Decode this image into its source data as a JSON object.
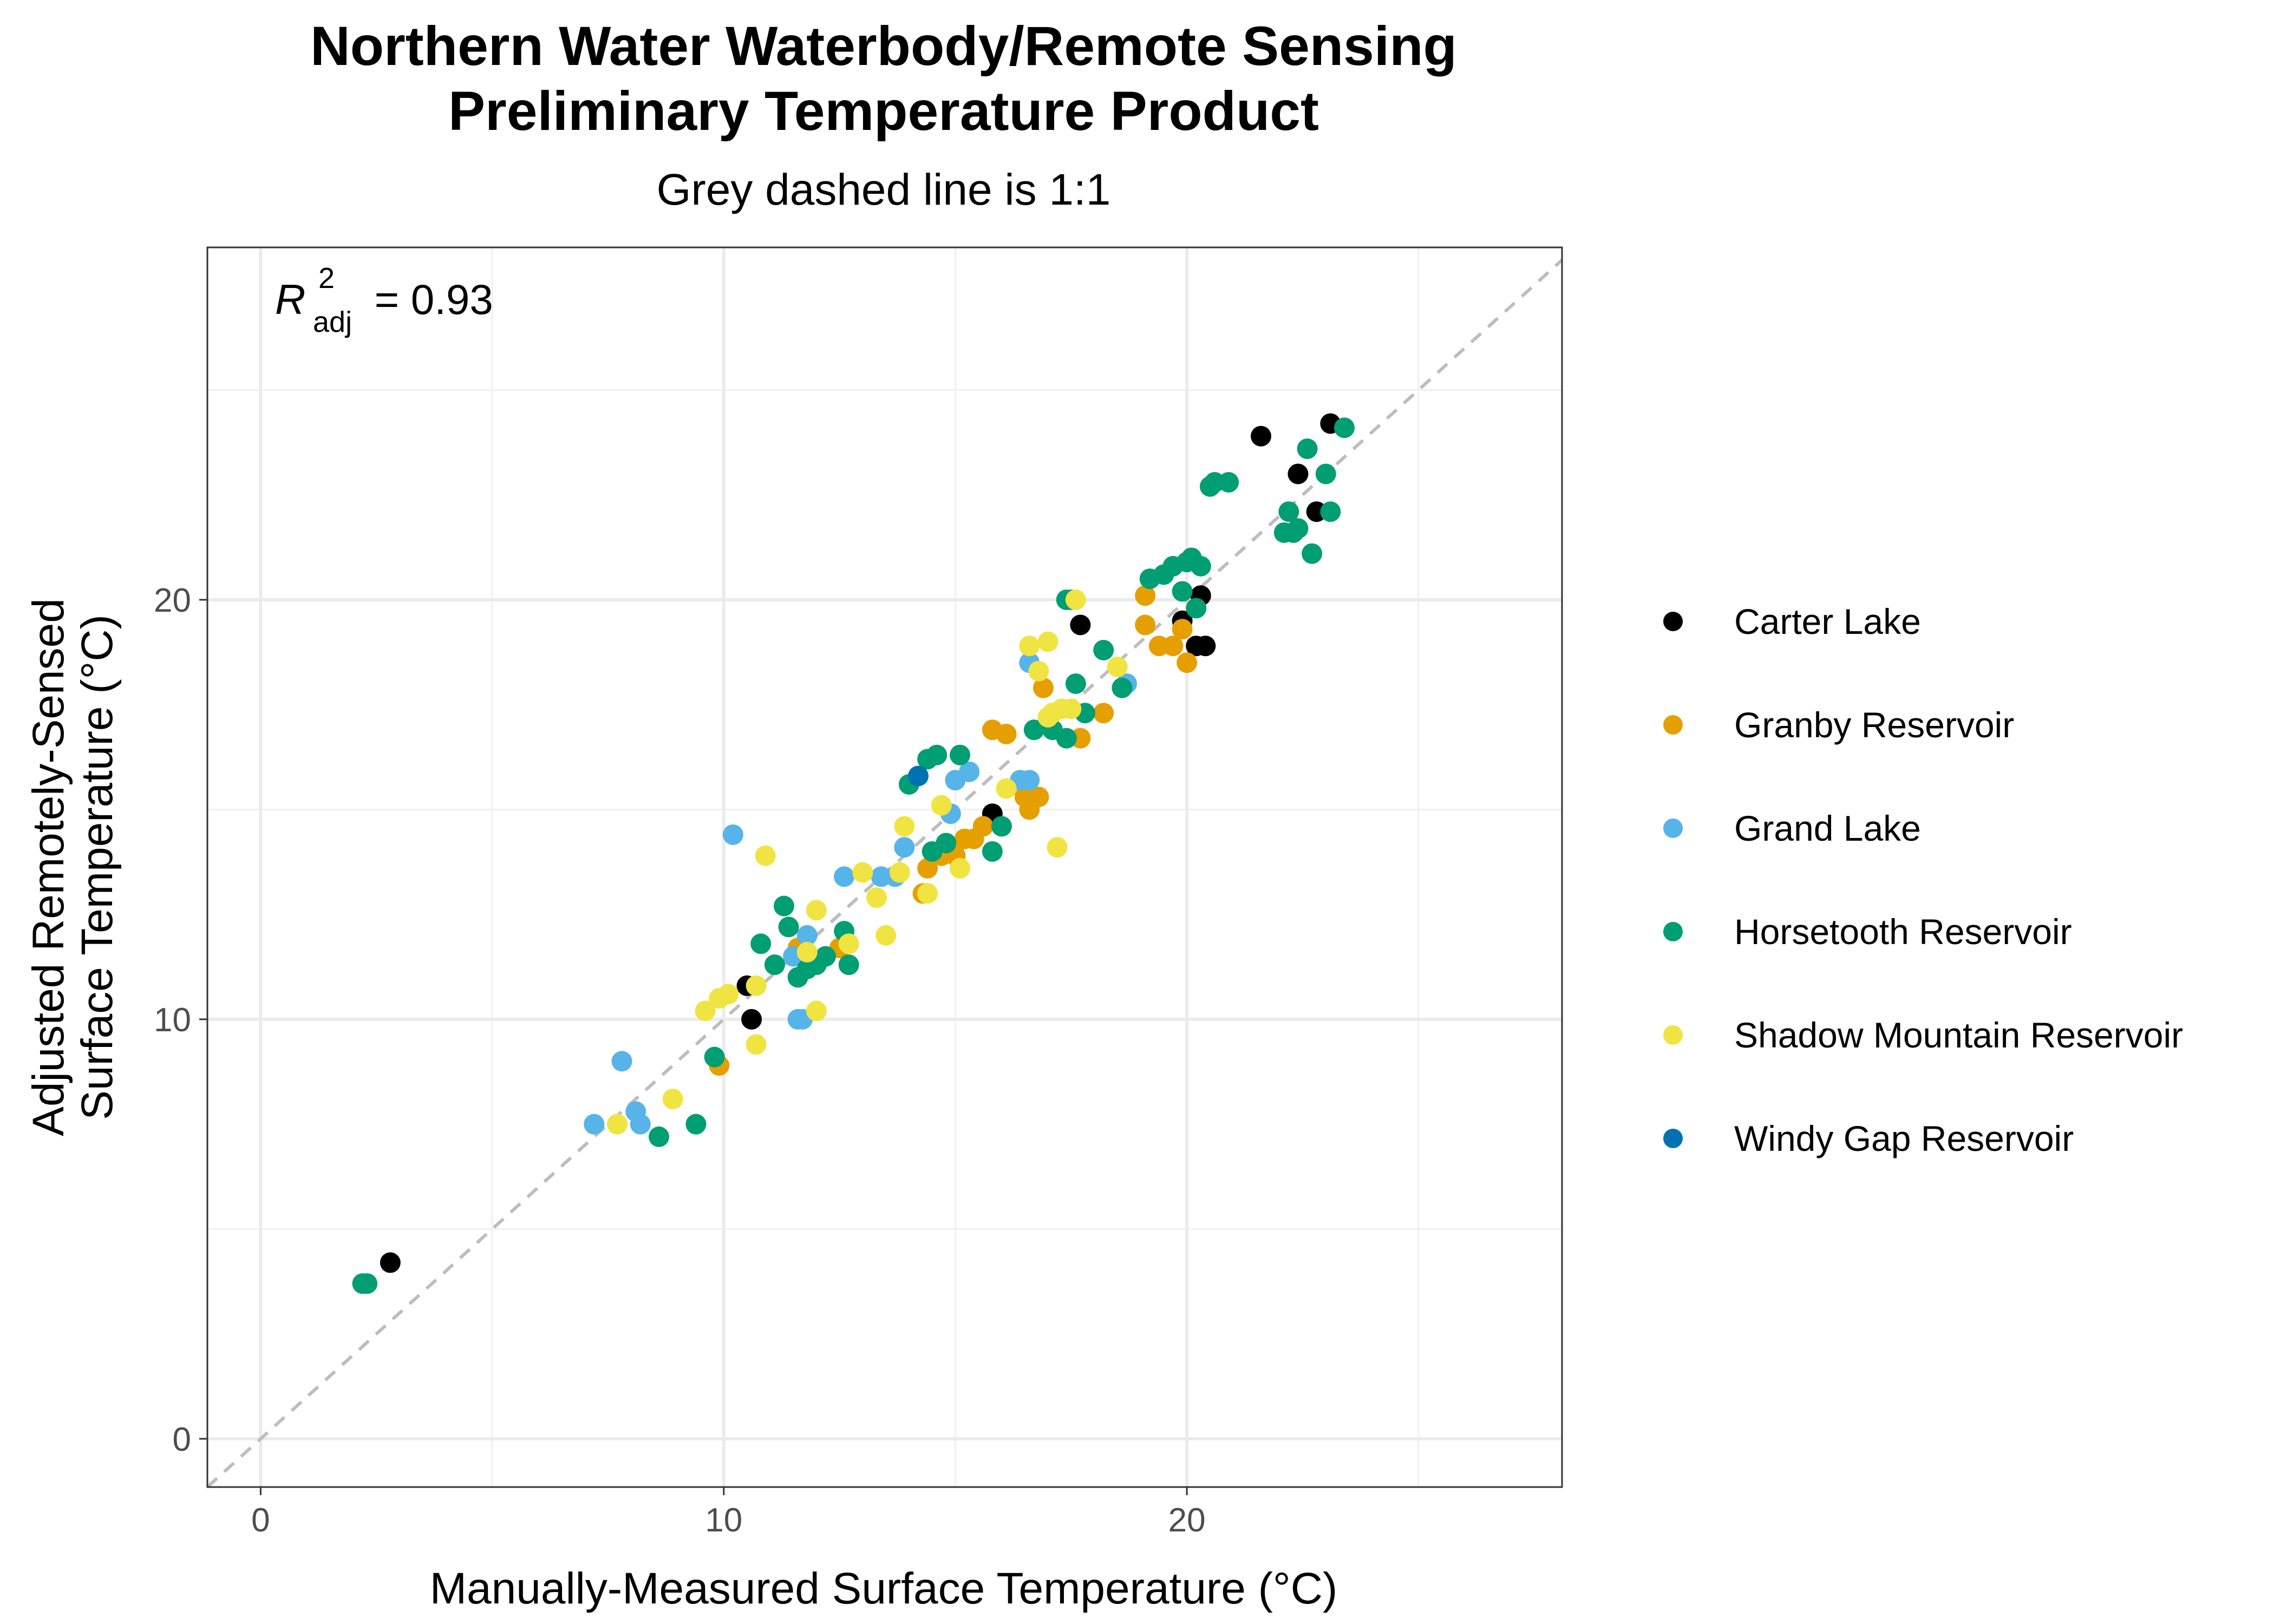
{
  "chart_data": {
    "type": "scatter",
    "title_line1": "Northern Water Waterbody/Remote Sensing",
    "title_line2": "Preliminary Temperature Product",
    "subtitle": "Grey dashed line is 1:1",
    "xlabel": "Manually-Measured Surface Temperature (°C)",
    "ylabel_line1": "Adjusted Remotely-Sensed",
    "ylabel_line2": "Surface Temperature (°C)",
    "xlim": [
      -1.15,
      28.1
    ],
    "ylim": [
      -1.15,
      28.4
    ],
    "x_ticks": [
      0,
      10,
      20
    ],
    "y_ticks": [
      0,
      10,
      20
    ],
    "x_minor": [
      5,
      15,
      25
    ],
    "y_minor": [
      5,
      15,
      25
    ],
    "grid": true,
    "reference_line": {
      "slope": 1,
      "intercept": 0,
      "color": "#bdbdbd",
      "style": "dashed"
    },
    "annotation": {
      "symbol": "R",
      "superscript": "2",
      "subscript": "adj",
      "value": " = 0.93"
    },
    "legend_position": "right",
    "series": [
      {
        "name": "Carter Lake",
        "color": "#000000",
        "points": [
          [
            2.8,
            4.2
          ],
          [
            10.5,
            10.8
          ],
          [
            10.6,
            10.0
          ],
          [
            15.8,
            14.9
          ],
          [
            17.7,
            19.4
          ],
          [
            19.9,
            19.5
          ],
          [
            20.2,
            18.9
          ],
          [
            20.3,
            20.1
          ],
          [
            20.4,
            18.9
          ],
          [
            21.6,
            23.9
          ],
          [
            22.4,
            23.0
          ],
          [
            22.8,
            22.1
          ],
          [
            23.1,
            24.2
          ]
        ]
      },
      {
        "name": "Granby Reservoir",
        "color": "#e69f00",
        "points": [
          [
            9.9,
            8.9
          ],
          [
            11.6,
            11.7
          ],
          [
            11.8,
            11.5
          ],
          [
            12.5,
            11.7
          ],
          [
            12.7,
            11.8
          ],
          [
            14.3,
            13.0
          ],
          [
            14.4,
            13.6
          ],
          [
            14.7,
            13.9
          ],
          [
            15.0,
            13.9
          ],
          [
            15.2,
            14.3
          ],
          [
            15.4,
            14.3
          ],
          [
            15.6,
            14.6
          ],
          [
            15.8,
            16.9
          ],
          [
            16.1,
            16.8
          ],
          [
            16.5,
            15.3
          ],
          [
            16.6,
            15.0
          ],
          [
            16.8,
            15.3
          ],
          [
            16.9,
            17.9
          ],
          [
            17.7,
            16.7
          ],
          [
            18.2,
            17.3
          ],
          [
            19.1,
            20.1
          ],
          [
            19.1,
            19.4
          ],
          [
            19.4,
            18.9
          ],
          [
            19.7,
            18.9
          ],
          [
            19.9,
            19.3
          ],
          [
            20.0,
            18.5
          ]
        ]
      },
      {
        "name": "Grand Lake",
        "color": "#56b4e9",
        "points": [
          [
            7.2,
            7.5
          ],
          [
            7.8,
            9.0
          ],
          [
            8.1,
            7.8
          ],
          [
            8.2,
            7.5
          ],
          [
            10.2,
            14.4
          ],
          [
            11.5,
            11.5
          ],
          [
            11.6,
            10.0
          ],
          [
            11.7,
            10.0
          ],
          [
            11.8,
            12.0
          ],
          [
            12.6,
            13.4
          ],
          [
            13.4,
            13.4
          ],
          [
            13.7,
            13.4
          ],
          [
            13.9,
            14.1
          ],
          [
            14.9,
            14.9
          ],
          [
            15.0,
            15.7
          ],
          [
            15.3,
            15.9
          ],
          [
            16.4,
            15.7
          ],
          [
            16.6,
            15.7
          ],
          [
            16.6,
            18.5
          ],
          [
            18.7,
            18.0
          ]
        ]
      },
      {
        "name": "Horsetooth Reservoir",
        "color": "#009e73",
        "points": [
          [
            2.2,
            3.7
          ],
          [
            2.3,
            3.7
          ],
          [
            8.6,
            7.2
          ],
          [
            9.4,
            7.5
          ],
          [
            9.8,
            9.1
          ],
          [
            10.8,
            11.8
          ],
          [
            11.1,
            11.3
          ],
          [
            11.3,
            12.7
          ],
          [
            11.4,
            12.2
          ],
          [
            11.6,
            11.0
          ],
          [
            11.8,
            11.2
          ],
          [
            12.0,
            11.3
          ],
          [
            12.2,
            11.5
          ],
          [
            12.6,
            12.1
          ],
          [
            12.7,
            11.3
          ],
          [
            14.0,
            15.6
          ],
          [
            14.4,
            16.2
          ],
          [
            14.6,
            16.3
          ],
          [
            14.8,
            14.2
          ],
          [
            14.5,
            14.0
          ],
          [
            15.1,
            16.3
          ],
          [
            15.8,
            14.0
          ],
          [
            16.0,
            14.6
          ],
          [
            16.7,
            16.9
          ],
          [
            17.1,
            16.9
          ],
          [
            17.4,
            16.7
          ],
          [
            17.4,
            20.0
          ],
          [
            17.5,
            20.0
          ],
          [
            17.6,
            18.0
          ],
          [
            17.8,
            17.3
          ],
          [
            18.2,
            18.8
          ],
          [
            18.6,
            17.9
          ],
          [
            19.2,
            20.5
          ],
          [
            19.5,
            20.6
          ],
          [
            19.7,
            20.8
          ],
          [
            19.9,
            20.2
          ],
          [
            20.0,
            20.9
          ],
          [
            20.1,
            21.0
          ],
          [
            20.2,
            19.8
          ],
          [
            20.3,
            20.8
          ],
          [
            20.5,
            22.7
          ],
          [
            20.6,
            22.8
          ],
          [
            20.9,
            22.8
          ],
          [
            22.1,
            21.6
          ],
          [
            22.2,
            22.1
          ],
          [
            22.3,
            21.6
          ],
          [
            22.4,
            21.7
          ],
          [
            22.6,
            23.6
          ],
          [
            22.7,
            21.1
          ],
          [
            23.0,
            23.0
          ],
          [
            23.1,
            22.1
          ],
          [
            23.4,
            24.1
          ]
        ]
      },
      {
        "name": "Shadow Mountain Reservoir",
        "color": "#f0e442",
        "points": [
          [
            7.7,
            7.5
          ],
          [
            8.9,
            8.1
          ],
          [
            9.6,
            10.2
          ],
          [
            9.9,
            10.5
          ],
          [
            10.1,
            10.6
          ],
          [
            10.7,
            9.4
          ],
          [
            10.7,
            10.8
          ],
          [
            10.9,
            13.9
          ],
          [
            11.8,
            11.6
          ],
          [
            12.0,
            12.6
          ],
          [
            12.0,
            10.2
          ],
          [
            12.7,
            11.8
          ],
          [
            13.0,
            13.5
          ],
          [
            13.3,
            12.9
          ],
          [
            13.5,
            12.0
          ],
          [
            13.8,
            13.5
          ],
          [
            13.9,
            14.6
          ],
          [
            14.4,
            13.0
          ],
          [
            14.7,
            15.1
          ],
          [
            15.1,
            13.6
          ],
          [
            16.1,
            15.5
          ],
          [
            16.6,
            18.9
          ],
          [
            16.8,
            18.3
          ],
          [
            17.0,
            19.0
          ],
          [
            17.0,
            17.2
          ],
          [
            17.1,
            17.3
          ],
          [
            17.2,
            14.1
          ],
          [
            17.3,
            17.4
          ],
          [
            17.5,
            17.4
          ],
          [
            17.6,
            20.0
          ],
          [
            18.5,
            18.4
          ]
        ]
      },
      {
        "name": "Windy Gap Reservoir",
        "color": "#0072b2",
        "points": [
          [
            14.2,
            15.8
          ]
        ]
      }
    ]
  }
}
